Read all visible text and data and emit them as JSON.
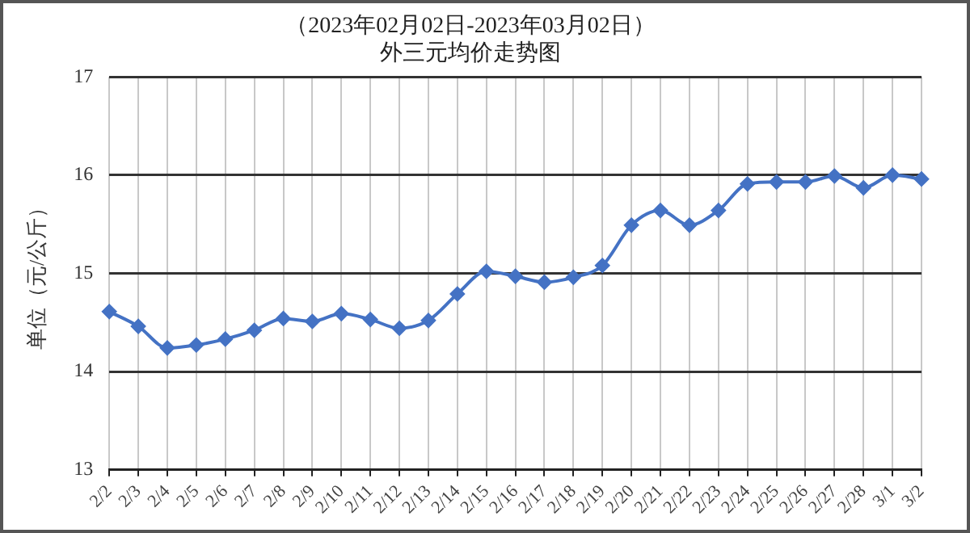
{
  "chart_data": {
    "type": "line",
    "title": "（2023年02月02日-2023年03月02日）",
    "subtitle": "外三元均价走势图",
    "ylabel": "单位（元/公斤）",
    "categories": [
      "2/2",
      "2/3",
      "2/4",
      "2/5",
      "2/6",
      "2/7",
      "2/8",
      "2/9",
      "2/10",
      "2/11",
      "2/12",
      "2/13",
      "2/14",
      "2/15",
      "2/16",
      "2/17",
      "2/18",
      "2/19",
      "2/20",
      "2/21",
      "2/22",
      "2/23",
      "2/24",
      "2/25",
      "2/26",
      "2/27",
      "2/28",
      "3/1",
      "3/2"
    ],
    "series": [
      {
        "color": "#4472c4",
        "values": [
          14.61,
          14.46,
          14.24,
          14.27,
          14.33,
          14.42,
          14.54,
          14.51,
          14.59,
          14.53,
          14.44,
          14.52,
          14.79,
          15.02,
          14.97,
          14.91,
          14.96,
          15.08,
          15.49,
          15.64,
          15.49,
          15.64,
          15.91,
          15.93,
          15.93,
          15.99,
          15.87,
          16.0,
          15.96
        ]
      }
    ],
    "ylim": [
      13,
      17
    ],
    "yticks": [
      13,
      14,
      15,
      16,
      17
    ],
    "grid": true,
    "legend": false,
    "marker": "diamond",
    "line_style": "solid"
  }
}
